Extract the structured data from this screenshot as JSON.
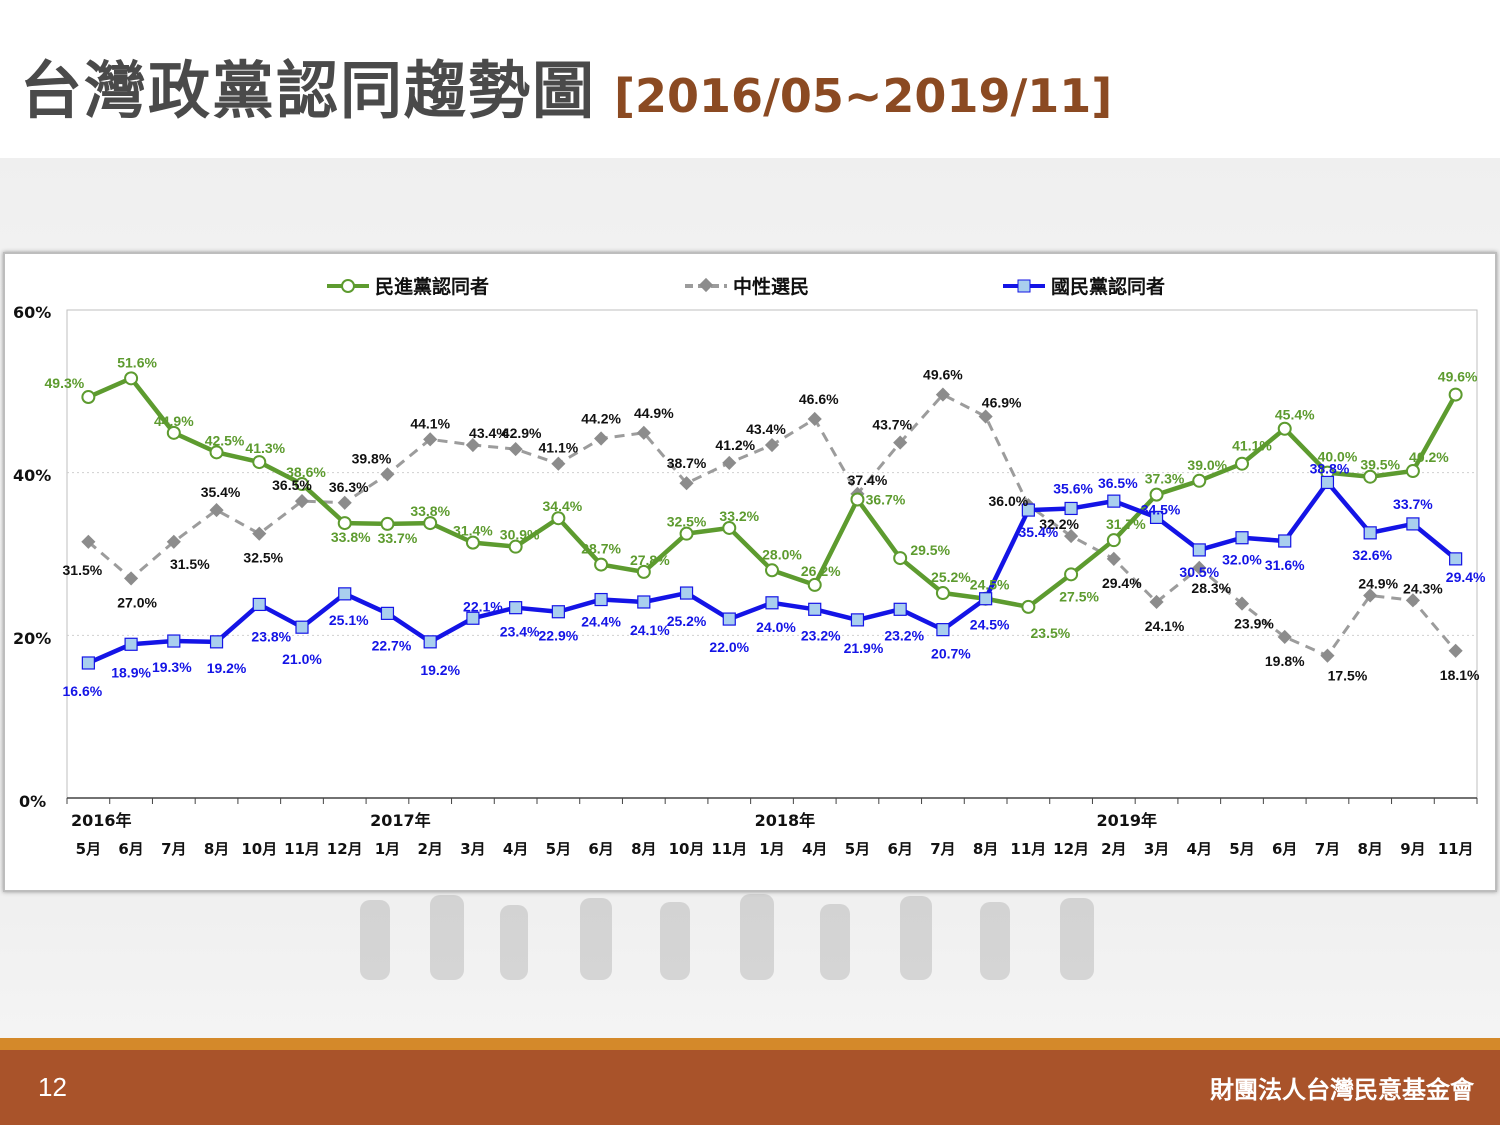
{
  "header": {
    "title": "台灣政黨認同趨勢圖",
    "subtitle": "[2016/05~2019/11]"
  },
  "footer": {
    "page_number": "12",
    "organization": "財團法人台灣民意基金會"
  },
  "colors": {
    "dpp": "#5d9b2f",
    "neutral": "#9c9c9c",
    "kmt": "#1414e6",
    "title": "#4a4a4a",
    "subtitle": "#8b4a22",
    "footer": "#a9532a"
  },
  "chart_data": {
    "type": "line",
    "title": "",
    "xlabel": "",
    "ylabel": "",
    "ylim": [
      0,
      60
    ],
    "yticks": [
      "0%",
      "20%",
      "40%",
      "60%"
    ],
    "grid": "horizontal dotted",
    "legend_position": "top",
    "categories": [
      "5月",
      "6月",
      "7月",
      "8月",
      "10月",
      "11月",
      "12月",
      "1月",
      "2月",
      "3月",
      "4月",
      "5月",
      "6月",
      "8月",
      "10月",
      "11月",
      "1月",
      "4月",
      "5月",
      "6月",
      "7月",
      "8月",
      "11月",
      "12月",
      "2月",
      "3月",
      "4月",
      "5月",
      "6月",
      "7月",
      "8月",
      "9月",
      "11月"
    ],
    "year_labels": [
      {
        "label": "2016年",
        "index": 0
      },
      {
        "label": "2017年",
        "index": 7
      },
      {
        "label": "2018年",
        "index": 16
      },
      {
        "label": "2019年",
        "index": 24
      }
    ],
    "series": [
      {
        "name": "民進黨認同者",
        "color": "#5d9b2f",
        "marker": "circle",
        "values": [
          49.3,
          51.6,
          44.9,
          42.5,
          41.3,
          38.6,
          33.8,
          33.7,
          33.8,
          31.4,
          30.9,
          34.4,
          28.7,
          27.8,
          32.5,
          33.2,
          28.0,
          26.2,
          36.7,
          29.5,
          25.2,
          24.5,
          23.5,
          27.5,
          31.7,
          37.3,
          39.0,
          41.1,
          45.4,
          40.0,
          39.5,
          40.2,
          49.6
        ],
        "labels": [
          "49.3%",
          "51.6%",
          "44.9%",
          "42.5%",
          "41.3%",
          "38.6%",
          "33.8%",
          "33.7%",
          "33.8%",
          "31.4%",
          "30.9%",
          "34.4%",
          "28.7%",
          "27.8%",
          "32.5%",
          "33.2%",
          "28.0%",
          "26.2%",
          "36.7%",
          "29.5%",
          "25.2%",
          "24.5%",
          "23.5%",
          "27.5%",
          "31.7%",
          "37.3%",
          "39.0%",
          "41.1%",
          "45.4%",
          "40.0%",
          "39.5%",
          "40.2%",
          "49.6%"
        ]
      },
      {
        "name": "中性選民",
        "color": "#9c9c9c",
        "marker": "diamond",
        "values": [
          31.5,
          27.0,
          31.5,
          35.4,
          32.5,
          36.5,
          36.3,
          39.8,
          44.1,
          43.4,
          42.9,
          41.1,
          44.2,
          44.9,
          38.7,
          41.2,
          43.4,
          46.6,
          37.4,
          43.7,
          49.6,
          46.9,
          36.0,
          32.2,
          29.4,
          24.1,
          28.3,
          23.9,
          19.8,
          17.5,
          24.9,
          24.3,
          18.1
        ],
        "labels": [
          "31.5%",
          "27.0%",
          "31.5%",
          "35.4%",
          "32.5%",
          "36.5%",
          "36.3%",
          "39.8%",
          "44.1%",
          "43.4%",
          "42.9%",
          "41.1%",
          "44.2%",
          "44.9%",
          "38.7%",
          "41.2%",
          "43.4%",
          "46.6%",
          "37.4%",
          "43.7%",
          "49.6%",
          "46.9%",
          "36.0%",
          "32.2%",
          "29.4%",
          "24.1%",
          "28.3%",
          "23.9%",
          "19.8%",
          "17.5%",
          "24.9%",
          "24.3%",
          "18.1%"
        ]
      },
      {
        "name": "國民黨認同者",
        "color": "#1414e6",
        "marker": "square",
        "values": [
          16.6,
          18.9,
          19.3,
          19.2,
          23.8,
          21.0,
          25.1,
          22.7,
          19.2,
          22.1,
          23.4,
          22.9,
          24.4,
          24.1,
          25.2,
          22.0,
          24.0,
          23.2,
          21.9,
          23.2,
          20.7,
          24.5,
          35.4,
          35.6,
          36.5,
          34.5,
          30.5,
          32.0,
          31.6,
          38.8,
          32.6,
          33.7,
          29.4
        ],
        "labels": [
          "16.6%",
          "18.9%",
          "19.3%",
          "19.2%",
          "23.8%",
          "21.0%",
          "25.1%",
          "22.7%",
          "19.2%",
          "22.1%",
          "23.4%",
          "22.9%",
          "24.4%",
          "24.1%",
          "25.2%",
          "22.0%",
          "24.0%",
          "23.2%",
          "21.9%",
          "23.2%",
          "20.7%",
          "24.5%",
          "35.4%",
          "35.6%",
          "36.5%",
          "34.5%",
          "30.5%",
          "32.0%",
          "31.6%",
          "38.8%",
          "32.6%",
          "33.7%",
          "29.4%"
        ]
      }
    ]
  }
}
